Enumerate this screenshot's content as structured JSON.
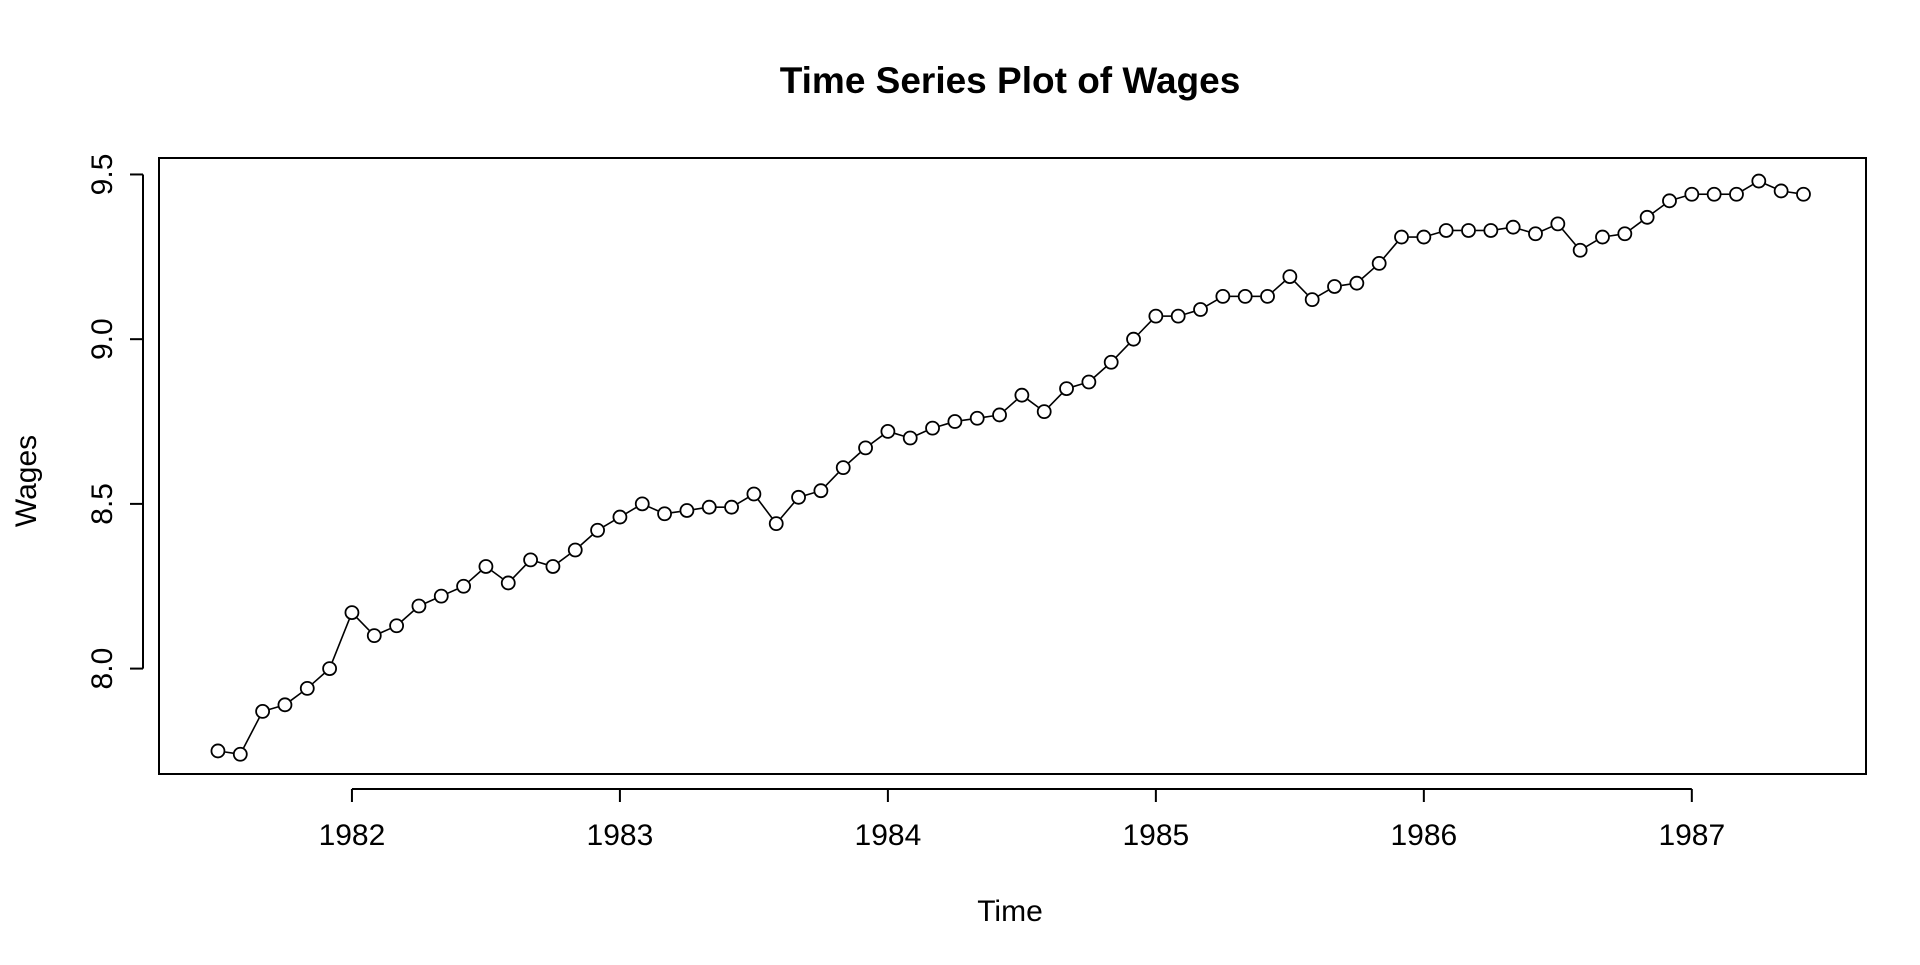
{
  "chart_data": {
    "type": "line",
    "title": "Time Series Plot of Wages",
    "xlabel": "Time",
    "ylabel": "Wages",
    "xlim": [
      1981.28,
      1987.65
    ],
    "ylim": [
      7.68,
      9.55
    ],
    "x_ticks": [
      1982,
      1983,
      1984,
      1985,
      1986,
      1987
    ],
    "x_tick_labels": [
      "1982",
      "1983",
      "1984",
      "1985",
      "1986",
      "1987"
    ],
    "y_ticks": [
      8.0,
      8.5,
      9.0,
      9.5
    ],
    "y_tick_labels": [
      "8.0",
      "8.5",
      "9.0",
      "9.5"
    ],
    "grid": false,
    "legend": "none",
    "marker": "open-circle",
    "line_color": "#000000",
    "series": [
      {
        "x": [
          "1981-07",
          "1981-08",
          "1981-09",
          "1981-10",
          "1981-11",
          "1981-12",
          "1982-01",
          "1982-02",
          "1982-03",
          "1982-04",
          "1982-05",
          "1982-06",
          "1982-07",
          "1982-08",
          "1982-09",
          "1982-10",
          "1982-11",
          "1982-12",
          "1983-01",
          "1983-02",
          "1983-03",
          "1983-04",
          "1983-05",
          "1983-06",
          "1983-07",
          "1983-08",
          "1983-09",
          "1983-10",
          "1983-11",
          "1983-12",
          "1984-01",
          "1984-02",
          "1984-03",
          "1984-04",
          "1984-05",
          "1984-06",
          "1984-07",
          "1984-08",
          "1984-09",
          "1984-10",
          "1984-11",
          "1984-12",
          "1985-01",
          "1985-02",
          "1985-03",
          "1985-04",
          "1985-05",
          "1985-06",
          "1985-07",
          "1985-08",
          "1985-09",
          "1985-10",
          "1985-11",
          "1985-12",
          "1986-01",
          "1986-02",
          "1986-03",
          "1986-04",
          "1986-05",
          "1986-06",
          "1986-07",
          "1986-08",
          "1986-09",
          "1986-10",
          "1986-11",
          "1986-12",
          "1987-01",
          "1987-02",
          "1987-03",
          "1987-04",
          "1987-05",
          "1987-06"
        ],
        "values": [
          7.75,
          7.74,
          7.87,
          7.89,
          7.94,
          8.0,
          8.17,
          8.1,
          8.13,
          8.19,
          8.22,
          8.25,
          8.31,
          8.26,
          8.33,
          8.31,
          8.36,
          8.42,
          8.46,
          8.5,
          8.47,
          8.48,
          8.49,
          8.49,
          8.53,
          8.44,
          8.52,
          8.54,
          8.61,
          8.67,
          8.72,
          8.7,
          8.73,
          8.75,
          8.76,
          8.77,
          8.83,
          8.78,
          8.85,
          8.87,
          8.93,
          9.0,
          9.07,
          9.07,
          9.09,
          9.13,
          9.13,
          9.13,
          9.19,
          9.12,
          9.16,
          9.17,
          9.23,
          9.31,
          9.31,
          9.33,
          9.33,
          9.33,
          9.34,
          9.32,
          9.35,
          9.27,
          9.31,
          9.32,
          9.37,
          9.42,
          9.44,
          9.44,
          9.44,
          9.48,
          9.45,
          9.44
        ]
      }
    ]
  }
}
